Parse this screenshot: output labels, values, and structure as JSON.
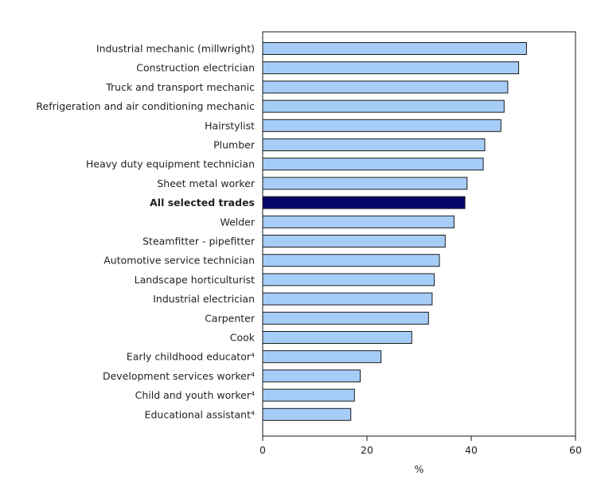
{
  "chart_data": {
    "type": "bar",
    "orientation": "horizontal",
    "categories": [
      "Industrial mechanic (millwright)",
      "Construction electrician",
      "Truck and transport mechanic",
      "Refrigeration and air conditioning mechanic",
      "Hairstylist",
      "Plumber",
      "Heavy duty equipment technician",
      "Sheet metal worker",
      "All selected trades",
      "Welder",
      "Steamfitter - pipefitter",
      "Automotive service technician",
      "Landscape horticulturist",
      "Industrial electrician",
      "Carpenter",
      "Cook",
      "Early childhood educator⁴",
      "Development services worker⁴",
      "Child and youth worker⁴",
      "Educational assistant⁴"
    ],
    "values": [
      50.6,
      49.1,
      47.0,
      46.3,
      45.7,
      42.6,
      42.3,
      39.2,
      38.8,
      36.7,
      35.0,
      33.9,
      32.9,
      32.5,
      31.8,
      28.6,
      22.7,
      18.7,
      17.6,
      16.9
    ],
    "highlight_category": "All selected trades",
    "xlabel": "%",
    "ylabel": "",
    "title": "",
    "xlim": [
      0,
      60
    ],
    "xticks": [
      0,
      20,
      40,
      60
    ],
    "grid": false,
    "legend": "none",
    "colors": {
      "bar": "#a6cdf8",
      "highlight": "#05046b",
      "bar_stroke": "#1a1a1a",
      "axis": "#1a1a1a"
    }
  }
}
